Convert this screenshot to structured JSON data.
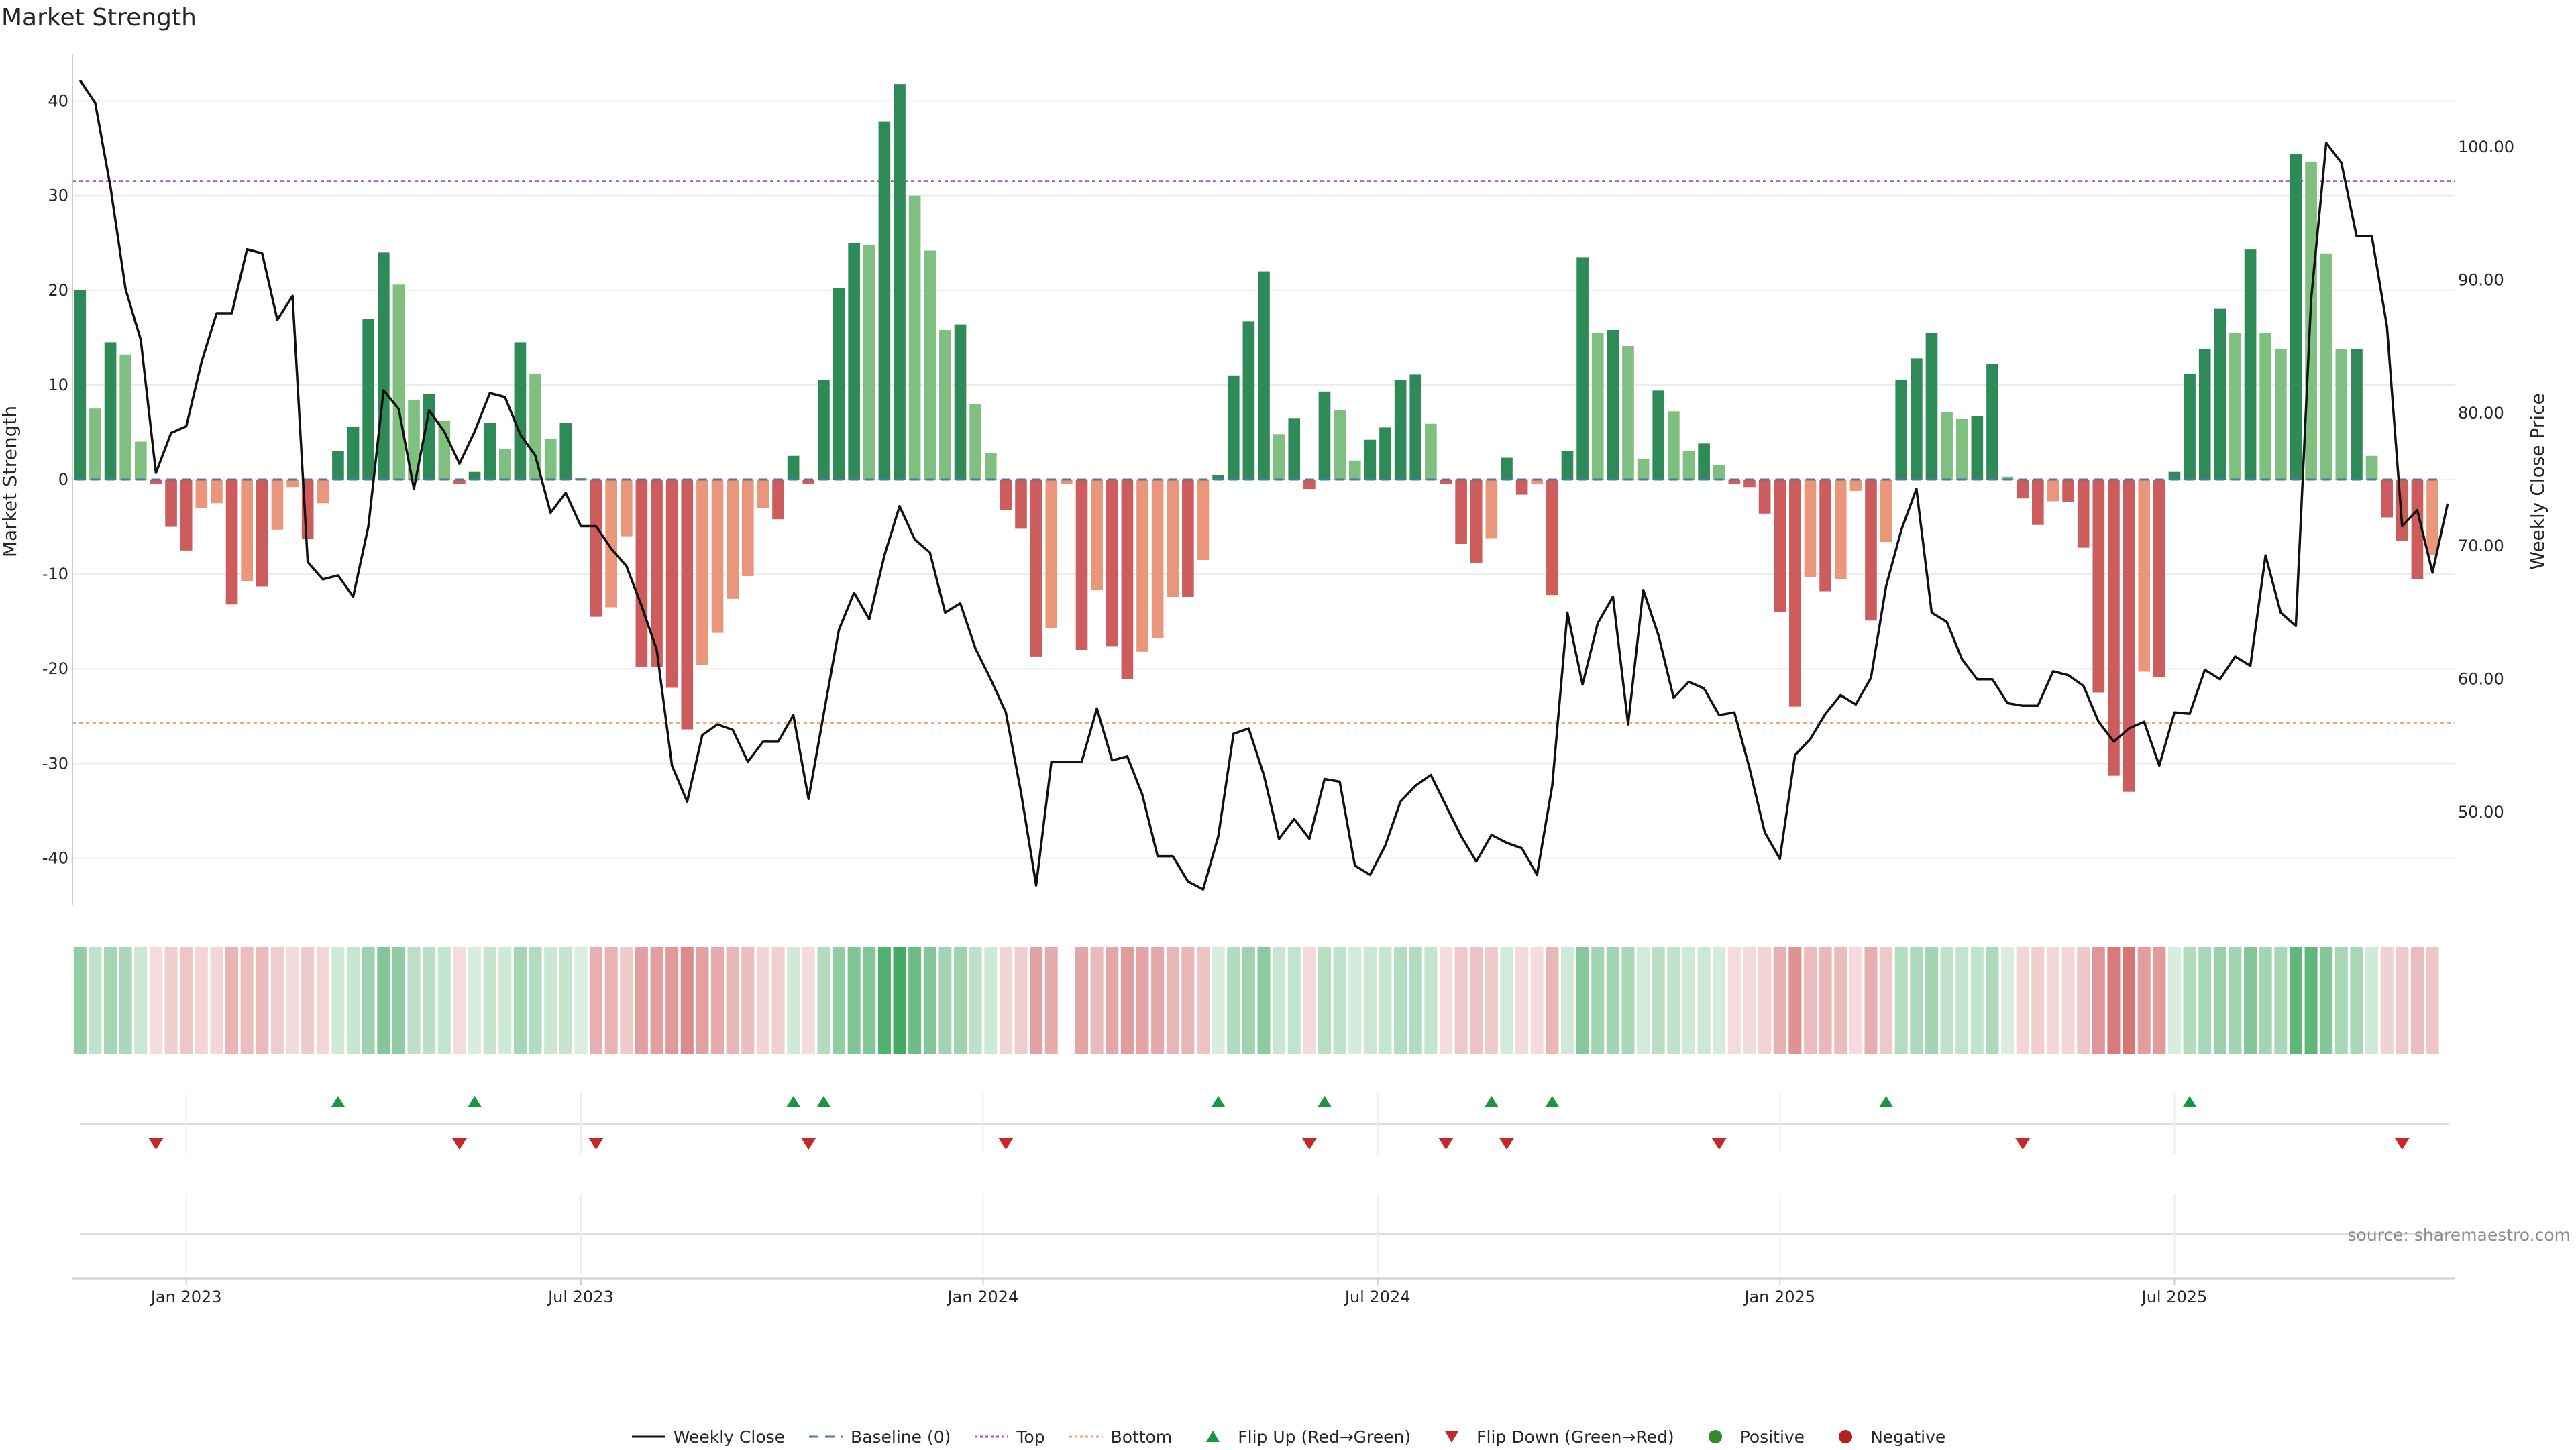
{
  "title": "Market Strength",
  "source_note": "source: sharemaestro.com",
  "axes": {
    "left_label": "Market Strength",
    "right_label": "Weekly Close Price",
    "left_ticks": [
      "40",
      "30",
      "20",
      "10",
      "0",
      "-10",
      "-20",
      "-30",
      "-40"
    ],
    "right_ticks": [
      "100.00",
      "90.00",
      "80.00",
      "70.00",
      "60.00",
      "50.00"
    ],
    "x_ticks": [
      "Jan 2023",
      "Jul 2023",
      "Jan 2024",
      "Jul 2024",
      "Jan 2025",
      "Jul 2025"
    ]
  },
  "legend": [
    {
      "label": "Weekly Close",
      "kind": "line",
      "color": "#111111"
    },
    {
      "label": "Baseline (0)",
      "kind": "dash",
      "color": "#4c78a8"
    },
    {
      "label": "Top",
      "kind": "dot",
      "color": "#b54bd6"
    },
    {
      "label": "Bottom",
      "kind": "dot",
      "color": "#f0a36a"
    },
    {
      "label": "Flip Up (Red→Green)",
      "kind": "tri-up",
      "color": "#1a9641"
    },
    {
      "label": "Flip Down (Green→Red)",
      "kind": "tri-down",
      "color": "#c62828"
    },
    {
      "label": "Positive",
      "kind": "circle",
      "color": "#2e8b2e"
    },
    {
      "label": "Negative",
      "kind": "circle",
      "color": "#b22222"
    }
  ],
  "chart_data": {
    "type": "bar",
    "title": "Market Strength",
    "ylabel": "Market Strength",
    "y2label": "Weekly Close Price",
    "ylim": [
      -45,
      45
    ],
    "y2lim": [
      43.0,
      107.0
    ],
    "top_threshold": 31.5,
    "bottom_threshold": -25.7,
    "colors": {
      "pos_strong": "#2e8b57",
      "pos_weak": "#7fbf7f",
      "neg_strong": "#cd5c5c",
      "neg_weak": "#e9967a",
      "close": "#111111"
    },
    "strength_bars": [
      20,
      7.5,
      14.5,
      13.2,
      4,
      -0.5,
      -5,
      -7.5,
      -3,
      -2.5,
      -13.2,
      -10.7,
      -11.3,
      -5.3,
      -0.8,
      -6.3,
      -2.5,
      3,
      5.6,
      17,
      24,
      20.6,
      8.4,
      9,
      6.2,
      -0.5,
      0.8,
      6,
      3.2,
      14.5,
      11.2,
      4.3,
      6,
      0.2,
      -14.5,
      -13.5,
      -6,
      -19.8,
      -19.8,
      -22,
      -26.4,
      -19.6,
      -16.2,
      -12.6,
      -10.2,
      -3,
      -4.2,
      2.5,
      -0.5,
      10.5,
      20.2,
      25,
      24.8,
      37.8,
      41.8,
      30,
      24.2,
      15.8,
      16.4,
      8,
      2.8,
      -3.2,
      -5.2,
      -18.7,
      -15.7,
      -0.5,
      -18,
      -11.7,
      -17.6,
      -21.1,
      -18.2,
      -16.8,
      -12.4,
      -12.4,
      -8.5,
      0.5,
      11,
      16.7,
      22,
      4.8,
      6.5,
      -1,
      9.3,
      7.3,
      2,
      4.2,
      5.5,
      10.5,
      11.1,
      5.9,
      -0.5,
      -6.8,
      -8.8,
      -6.2,
      2.3,
      -1.6,
      -0.5,
      -12.2,
      3,
      23.5,
      15.5,
      15.8,
      14.1,
      2.2,
      9.4,
      7.2,
      3,
      3.8,
      1.5,
      -0.5,
      -0.8,
      -3.6,
      -14,
      -24,
      -10.3,
      -11.8,
      -10.5,
      -1.2,
      -14.9,
      -6.6,
      10.5,
      12.8,
      15.5,
      7.1,
      6.4,
      6.7,
      12.2,
      0.3,
      -2,
      -4.8,
      -2.3,
      -2.4,
      -7.2,
      -22.5,
      -31.3,
      -33,
      -20.3,
      -20.9,
      0.8,
      11.2,
      13.8,
      18.1,
      15.5,
      24.3,
      15.5,
      13.8,
      34.4,
      33.6,
      23.9,
      13.8,
      13.8,
      2.5,
      -4,
      -6.5,
      -10.5,
      -8
    ],
    "weekly_close": [
      105,
      103.3,
      97,
      89.3,
      85.5,
      75.5,
      78.5,
      79,
      83.8,
      87.5,
      87.5,
      92.3,
      92,
      87,
      88.8,
      68.8,
      67.5,
      67.8,
      66.2,
      71.5,
      81.7,
      80.3,
      74.3,
      80.2,
      78.6,
      76.2,
      78.6,
      81.5,
      81.2,
      78.4,
      76.8,
      72.5,
      74,
      71.5,
      71.5,
      69.8,
      68.5,
      65.5,
      62.2,
      53.5,
      50.8,
      55.8,
      56.6,
      56.2,
      53.8,
      55.3,
      55.3,
      57.3,
      51,
      57.4,
      63.7,
      66.5,
      64.5,
      69.3,
      73,
      70.5,
      69.5,
      65,
      65.7,
      62.3,
      60,
      57.5,
      51.5,
      44.5,
      53.8,
      53.8,
      53.8,
      57.8,
      53.9,
      54.2,
      51.3,
      46.7,
      46.7,
      44.8,
      44.2,
      48.2,
      55.9,
      56.3,
      52.8,
      48,
      49.5,
      48,
      52.5,
      52.3,
      46,
      45.3,
      47.5,
      50.8,
      52,
      52.8,
      50.5,
      48.2,
      46.3,
      48.3,
      47.7,
      47.3,
      45.3,
      52,
      65,
      59.6,
      64.2,
      66.2,
      56.6,
      66.7,
      63.3,
      58.6,
      59.8,
      59.3,
      57.3,
      57.5,
      53.3,
      48.5,
      46.5,
      54.3,
      55.5,
      57.4,
      58.8,
      58.1,
      60.1,
      67,
      71.2,
      74.3,
      65,
      64.3,
      61.5,
      60,
      60,
      58.2,
      58,
      58,
      60.6,
      60.3,
      59.5,
      56.8,
      55.3,
      56.3,
      56.8,
      53.5,
      57.5,
      57.4,
      60.7,
      60,
      61.7,
      61,
      69.3,
      65,
      64,
      88.5,
      100.3,
      98.8,
      93.3,
      93.3,
      86.5,
      71.5,
      72.7,
      68,
      73.2
    ],
    "flips_up_weeks": [
      17,
      26,
      47,
      49,
      75,
      82,
      93,
      97,
      119,
      139
    ],
    "flips_down_weeks": [
      5,
      25,
      34,
      48,
      61,
      81,
      90,
      94,
      108,
      128,
      153
    ],
    "x_ticks": [
      "Jan 2023",
      "Jul 2023",
      "Jan 2024",
      "Jul 2024",
      "Jan 2025",
      "Jul 2025"
    ],
    "x_tick_weeks": [
      7,
      33,
      59.5,
      85.5,
      112,
      138
    ],
    "gap_weeks": [
      65
    ]
  }
}
